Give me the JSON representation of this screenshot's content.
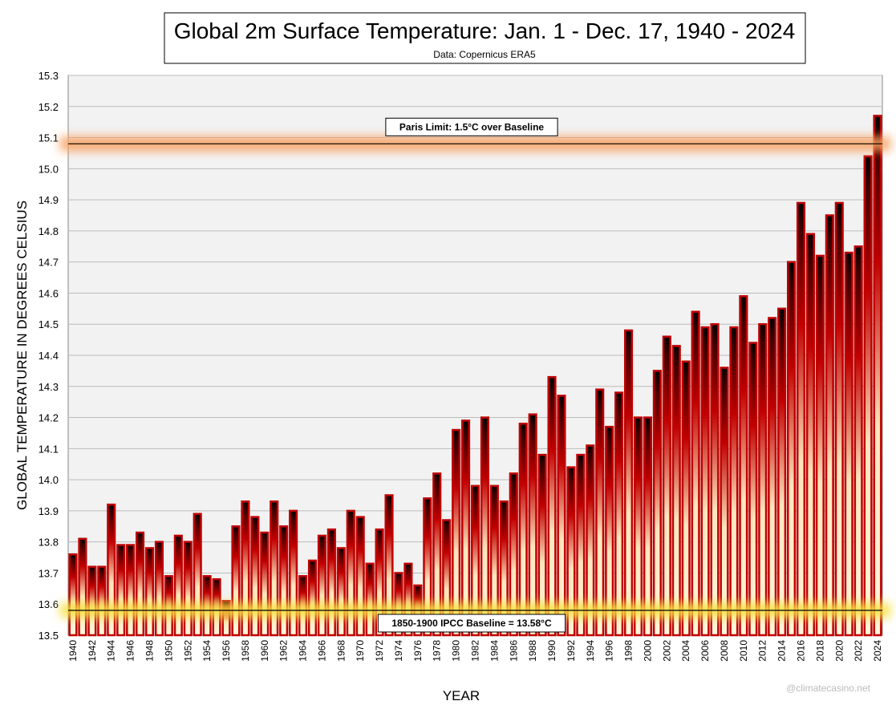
{
  "chart_data": {
    "type": "bar",
    "title": "Global 2m Surface Temperature: Jan. 1 - Dec. 17, 1940 - 2024",
    "subtitle": "Data: Copernicus ERA5",
    "x_label": "YEAR",
    "y_label": "GLOBAL TEMPERATURE IN DEGREES CELSIUS",
    "watermark": "@climatecasino.net",
    "categories": [
      "1940",
      null,
      "1942",
      null,
      "1944",
      null,
      "1946",
      null,
      "1948",
      null,
      "1950",
      null,
      "1952",
      null,
      "1954",
      null,
      "1956",
      null,
      "1958",
      null,
      "1960",
      null,
      "1962",
      null,
      "1964",
      null,
      "1966",
      null,
      "1968",
      null,
      "1970",
      null,
      "1972",
      null,
      "1974",
      null,
      "1976",
      null,
      "1978",
      null,
      "1980",
      null,
      "1982",
      null,
      "1984",
      null,
      "1986",
      null,
      "1988",
      null,
      "1990",
      null,
      "1992",
      null,
      "1994",
      null,
      "1996",
      null,
      "1998",
      null,
      "2000",
      null,
      "2002",
      null,
      "2004",
      null,
      "2006",
      null,
      "2008",
      null,
      "2010",
      null,
      "2012",
      null,
      "2014",
      null,
      "2016",
      null,
      "2018",
      null,
      "2020",
      null,
      "2022",
      null,
      "2024"
    ],
    "values": [
      13.76,
      13.81,
      13.72,
      13.72,
      13.92,
      13.79,
      13.79,
      13.83,
      13.78,
      13.8,
      13.69,
      13.82,
      13.8,
      13.89,
      13.69,
      13.68,
      13.61,
      13.85,
      13.93,
      13.88,
      13.83,
      13.93,
      13.85,
      13.9,
      13.69,
      13.74,
      13.82,
      13.84,
      13.78,
      13.9,
      13.88,
      13.73,
      13.84,
      13.95,
      13.7,
      13.73,
      13.66,
      13.94,
      14.02,
      13.87,
      14.16,
      14.19,
      13.98,
      14.2,
      13.98,
      13.93,
      14.02,
      14.18,
      14.21,
      14.08,
      14.33,
      14.27,
      14.04,
      14.08,
      14.11,
      14.29,
      14.17,
      14.28,
      14.48,
      14.2,
      14.2,
      14.35,
      14.46,
      14.43,
      14.38,
      14.54,
      14.49,
      14.5,
      14.36,
      14.49,
      14.59,
      14.44,
      14.5,
      14.52,
      14.55,
      14.7,
      14.89,
      14.79,
      14.72,
      14.85,
      14.89,
      14.73,
      14.75,
      15.04,
      15.17
    ],
    "color": "#c00000",
    "ylim": [
      13.5,
      15.3
    ],
    "yticks": [
      13.5,
      13.6,
      13.7,
      13.8,
      13.9,
      {
        "value": 14,
        "label": "14.0"
      },
      14.1,
      14.2,
      14.3,
      14.4,
      14.5,
      14.6,
      14.7,
      14.8,
      14.9,
      {
        "value": 15,
        "label": "15.0"
      },
      15.1,
      15.2,
      15.3
    ],
    "grid": true,
    "reference_lines": [
      {
        "label": "Paris Limit: 1.5°C over Baseline",
        "value": 15.08,
        "color": "#f8a060"
      },
      {
        "label": "1850-1900 IPCC Baseline = 13.58°C",
        "value": 13.58,
        "color": "#f8e040"
      }
    ]
  }
}
